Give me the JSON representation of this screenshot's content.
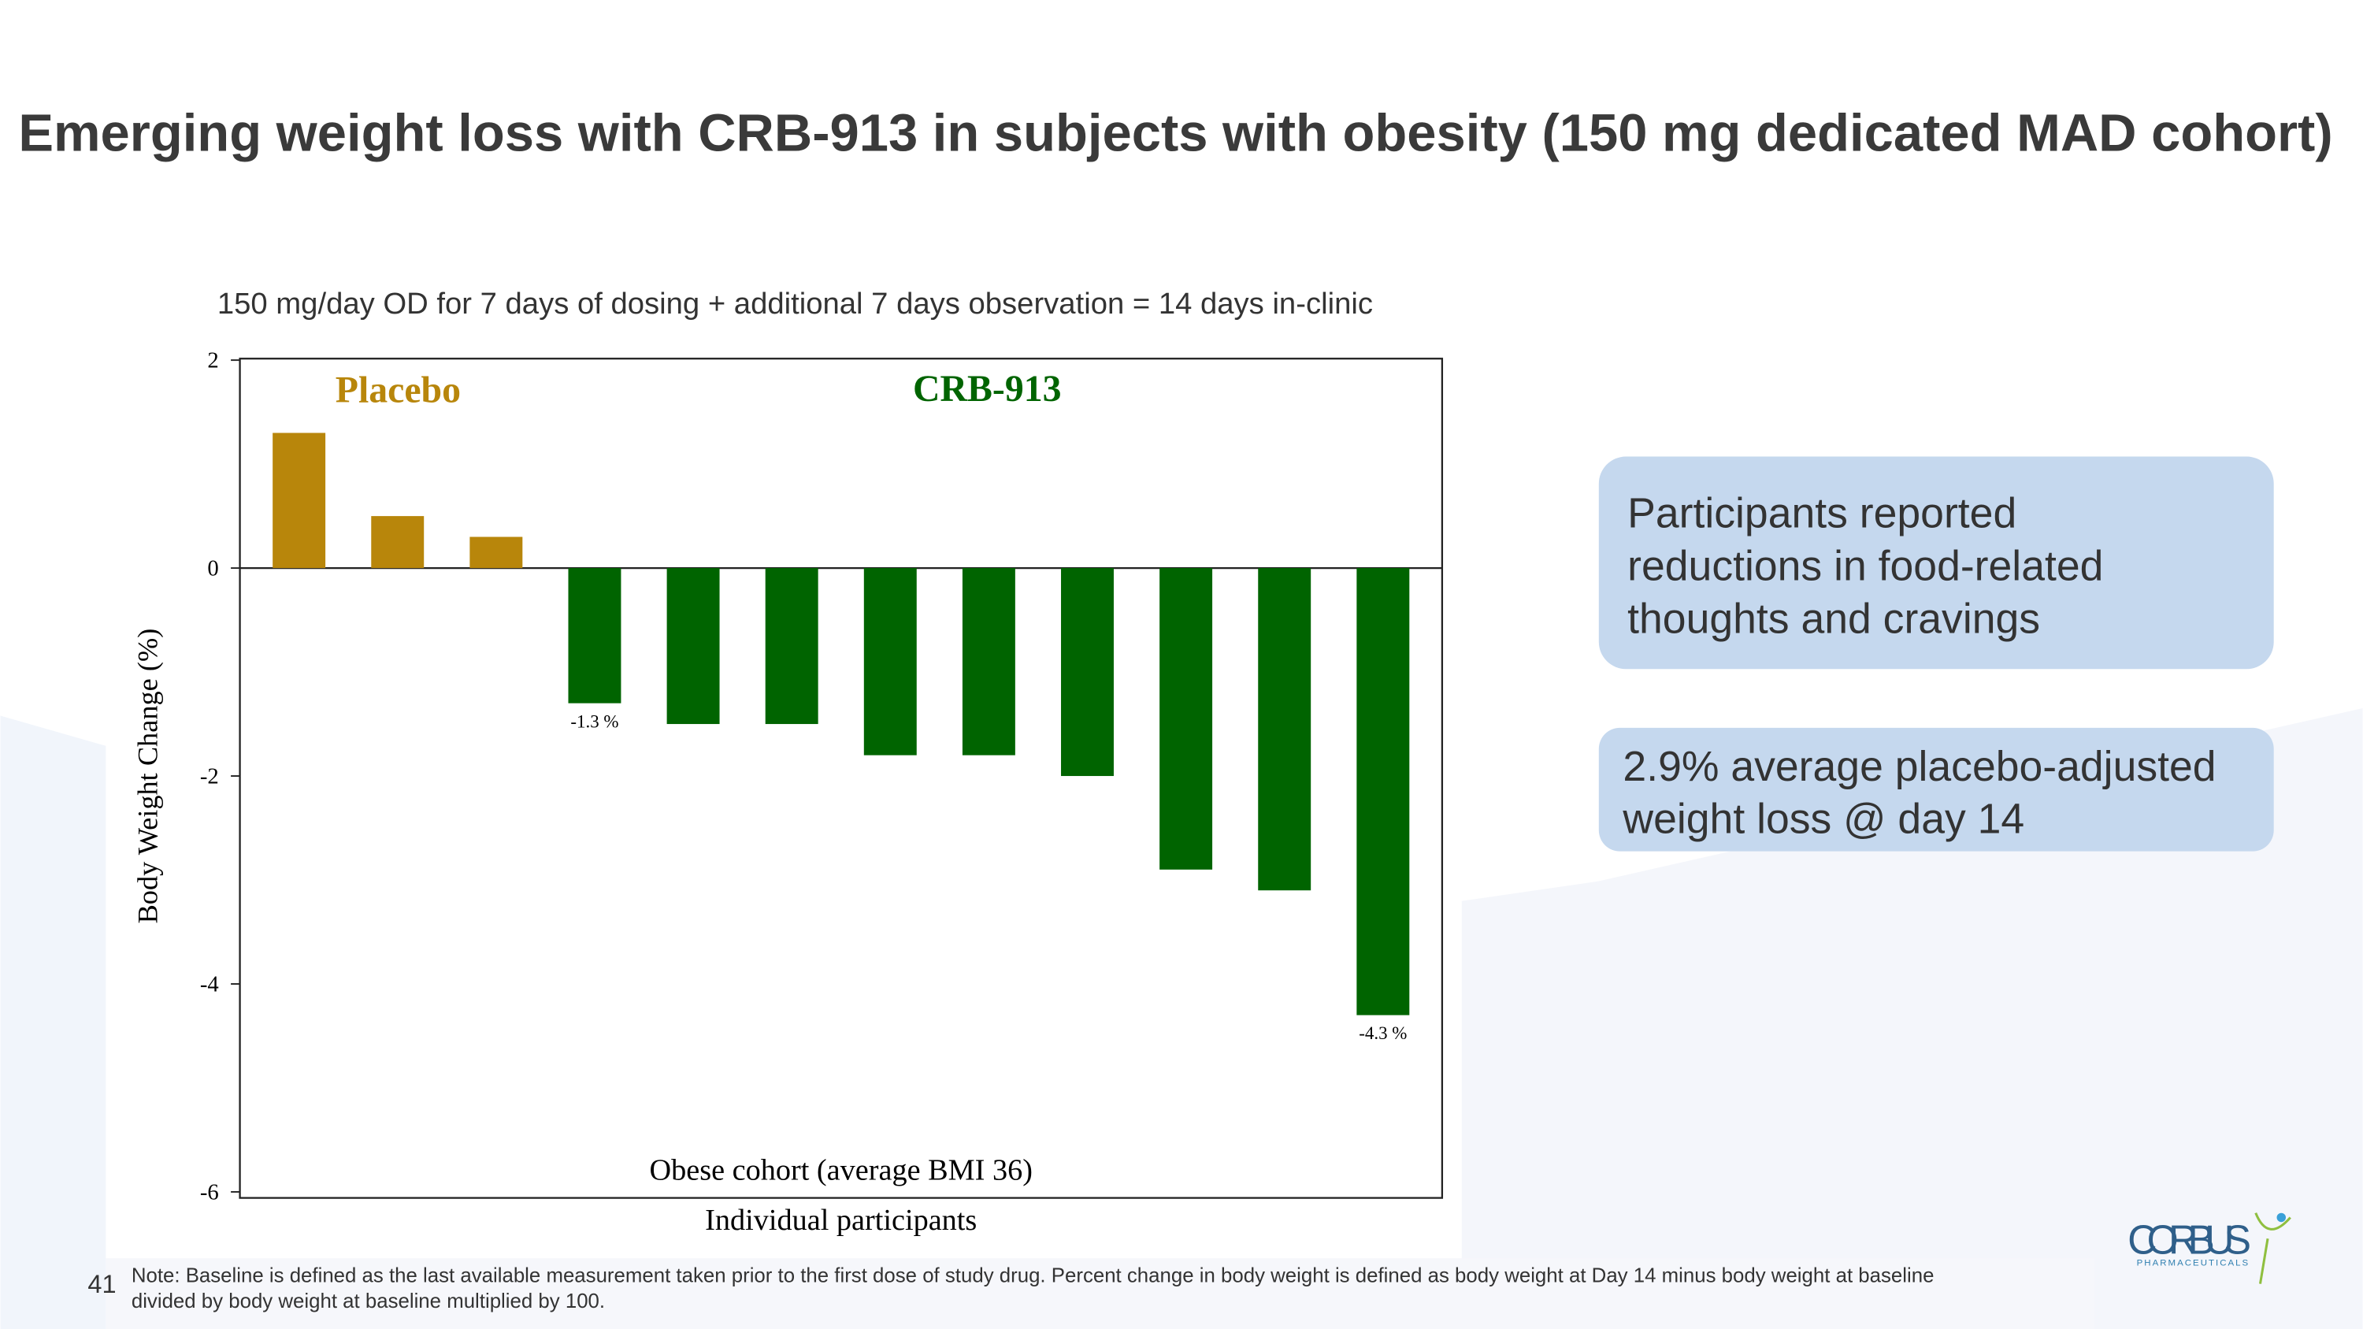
{
  "header": {
    "title": "Emerging weight loss with CRB-913 in subjects with obesity (150 mg dedicated MAD cohort)"
  },
  "chart_data": {
    "type": "bar",
    "subtitle": "150 mg/day OD for 7 days of dosing + additional 7 days observation = 14 days in-clinic",
    "y_label": "Body Weight Change (%)",
    "x_label": "Individual participants",
    "annotation": "Obese cohort (average BMI 36)",
    "categories": [
      null,
      null,
      null,
      null,
      null,
      null,
      null,
      null,
      null,
      null,
      null,
      null
    ],
    "series": [
      {
        "name": "Placebo",
        "color": "#b8860b",
        "values": [
          1.3,
          0.5,
          0.3,
          null,
          null,
          null,
          null,
          null,
          null,
          null,
          null,
          null
        ]
      },
      {
        "name": "CRB-913",
        "color": "#006400",
        "values": [
          null,
          null,
          null,
          -1.3,
          -1.5,
          -1.5,
          -1.8,
          -1.8,
          -2.0,
          -2.9,
          -3.1,
          -4.3
        ],
        "value_labels": [
          null,
          null,
          null,
          "-1.3 %",
          null,
          null,
          null,
          null,
          null,
          null,
          null,
          "-4.3 %"
        ]
      }
    ],
    "ylim": [
      -6,
      2
    ],
    "yticks": [
      2,
      0,
      -2,
      -4,
      -6
    ]
  },
  "callouts": [
    {
      "lines": [
        "Participants reported",
        "reductions in food-related",
        "thoughts and cravings"
      ]
    },
    {
      "lines": [
        "2.9% average placebo-adjusted",
        "weight loss @ day 14"
      ]
    }
  ],
  "footer": {
    "page": "41",
    "note": [
      "Note: Baseline is defined as the last available measurement taken prior to the first dose of study drug. Percent change in body weight is defined as body weight at Day 14 minus body weight at baseline",
      "divided by body weight at baseline multiplied by 100."
    ]
  },
  "logo": {
    "name": "CORBUS",
    "tagline": "PHARMACEUTICALS"
  }
}
